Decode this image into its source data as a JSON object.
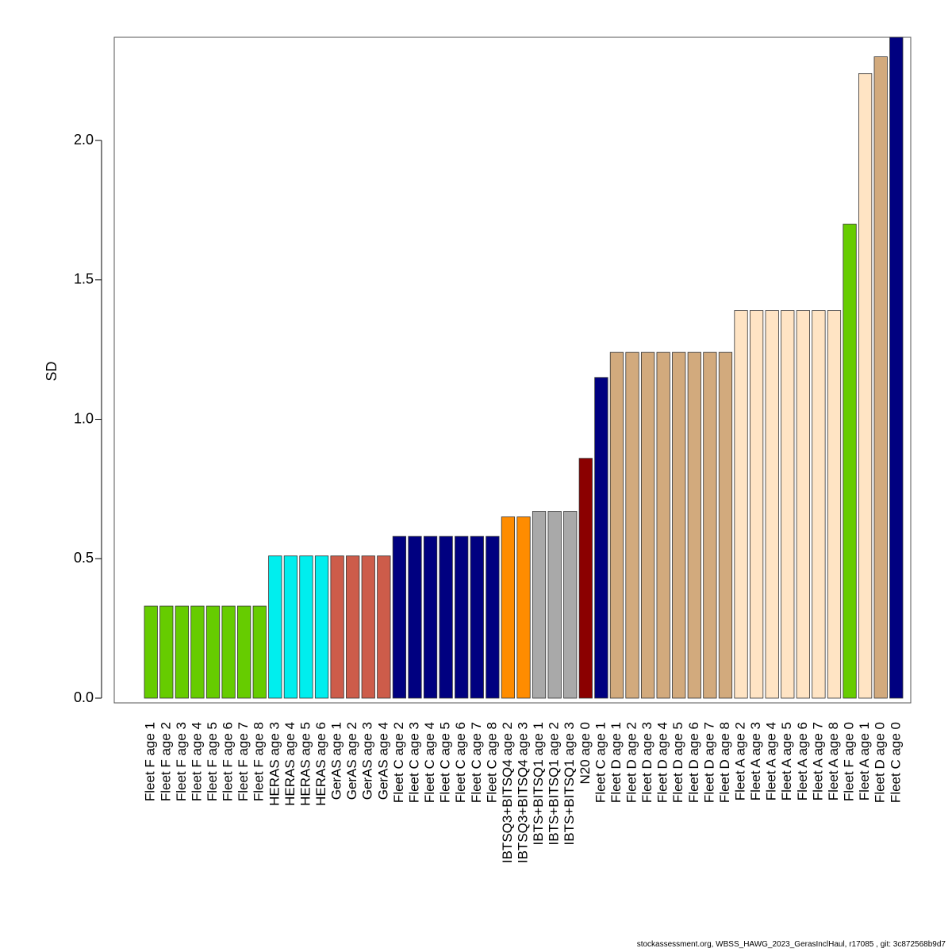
{
  "footer": "stockassessment.org, WBSS_HAWG_2023_GerasInclHaul, r17085 , git: 3c872568b9d7",
  "chart_data": {
    "type": "bar",
    "title": "",
    "xlabel": "",
    "ylabel": "SD",
    "ylim": [
      0,
      2.37
    ],
    "yticks": [
      0.0,
      0.5,
      1.0,
      1.5,
      2.0
    ],
    "ytick_labels": [
      "0.0",
      "0.5",
      "1.0",
      "1.5",
      "2.0"
    ],
    "grid": false,
    "categories": [
      "Fleet F age 1",
      "Fleet F age 2",
      "Fleet F age 3",
      "Fleet F age 4",
      "Fleet F age 5",
      "Fleet F age 6",
      "Fleet F age 7",
      "Fleet F age 8",
      "HERAS age 3",
      "HERAS age 4",
      "HERAS age 5",
      "HERAS age 6",
      "GerAS age 1",
      "GerAS age 2",
      "GerAS age 3",
      "GerAS age 4",
      "Fleet C age 2",
      "Fleet C age 3",
      "Fleet C age 4",
      "Fleet C age 5",
      "Fleet C age 6",
      "Fleet C age 7",
      "Fleet C age 8",
      "IBTSQ3+BITSQ4 age 2",
      "IBTSQ3+BITSQ4 age 3",
      "IBTS+BITSQ1 age 1",
      "IBTS+BITSQ1 age 2",
      "IBTS+BITSQ1 age 3",
      "N20 age 0",
      "Fleet C age 1",
      "Fleet D age 1",
      "Fleet D age 2",
      "Fleet D age 3",
      "Fleet D age 4",
      "Fleet D age 5",
      "Fleet D age 6",
      "Fleet D age 7",
      "Fleet D age 8",
      "Fleet A age 2",
      "Fleet A age 3",
      "Fleet A age 4",
      "Fleet A age 5",
      "Fleet A age 6",
      "Fleet A age 7",
      "Fleet A age 8",
      "Fleet F age 0",
      "Fleet A age 1",
      "Fleet D age 0",
      "Fleet C age 0"
    ],
    "values": [
      0.33,
      0.33,
      0.33,
      0.33,
      0.33,
      0.33,
      0.33,
      0.33,
      0.51,
      0.51,
      0.51,
      0.51,
      0.51,
      0.51,
      0.51,
      0.51,
      0.58,
      0.58,
      0.58,
      0.58,
      0.58,
      0.58,
      0.58,
      0.65,
      0.65,
      0.67,
      0.67,
      0.67,
      0.86,
      1.15,
      1.24,
      1.24,
      1.24,
      1.24,
      1.24,
      1.24,
      1.24,
      1.24,
      1.39,
      1.39,
      1.39,
      1.39,
      1.39,
      1.39,
      1.39,
      1.7,
      2.24,
      2.3,
      2.37
    ],
    "colors": [
      "#66cc00",
      "#66cc00",
      "#66cc00",
      "#66cc00",
      "#66cc00",
      "#66cc00",
      "#66cc00",
      "#66cc00",
      "#00eeee",
      "#00eeee",
      "#00eeee",
      "#00eeee",
      "#cd5c4a",
      "#cd5c4a",
      "#cd5c4a",
      "#cd5c4a",
      "#000080",
      "#000080",
      "#000080",
      "#000080",
      "#000080",
      "#000080",
      "#000080",
      "#ff8c00",
      "#ff8c00",
      "#a9a9a9",
      "#a9a9a9",
      "#a9a9a9",
      "#8b0000",
      "#000080",
      "#d2aa7d",
      "#d2aa7d",
      "#d2aa7d",
      "#d2aa7d",
      "#d2aa7d",
      "#d2aa7d",
      "#d2aa7d",
      "#d2aa7d",
      "#ffe4c4",
      "#ffe4c4",
      "#ffe4c4",
      "#ffe4c4",
      "#ffe4c4",
      "#ffe4c4",
      "#ffe4c4",
      "#66cc00",
      "#ffe4c4",
      "#d2aa7d",
      "#000080"
    ]
  }
}
